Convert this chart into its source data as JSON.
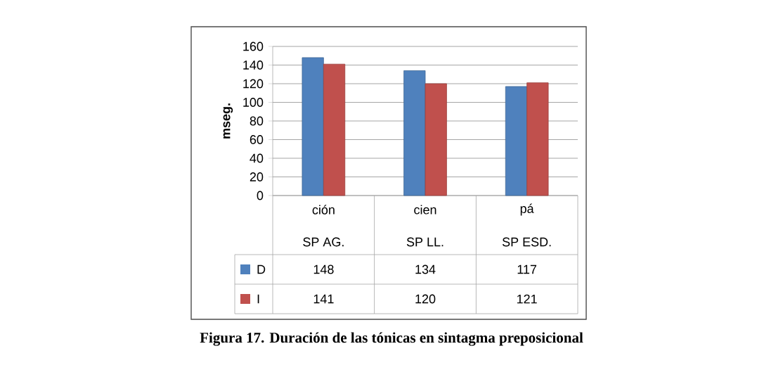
{
  "chart_data": {
    "type": "bar",
    "title": "Figura 17. Duración de las tónicas en sintagma preposicional",
    "categories": [
      "ción",
      "cien",
      "pá"
    ],
    "annotations": [
      "SP AG.",
      "SP LL.",
      "SP ESD."
    ],
    "ylabel": "mseg.",
    "series": [
      {
        "name": "D",
        "color": "#4f81bd",
        "values": [
          148,
          134,
          117
        ]
      },
      {
        "name": "I",
        "color": "#c0504d",
        "values": [
          141,
          120,
          121
        ]
      }
    ],
    "ylim": [
      0,
      160
    ],
    "yticks": [
      0,
      20,
      40,
      60,
      80,
      100,
      120,
      140,
      160
    ],
    "grid": "y",
    "legend": "bottom",
    "data_labels": true
  }
}
